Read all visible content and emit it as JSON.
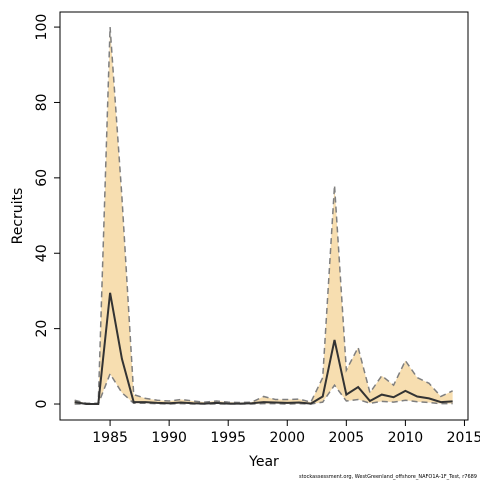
{
  "chart_data": {
    "type": "line",
    "xlabel": "Year",
    "ylabel": "Recruits",
    "annotation": "stockassessment.org, WestGreenland_offshore_NAFO1A-1F_Test, r7689",
    "x": [
      1982,
      1983,
      1984,
      1985,
      1986,
      1987,
      1988,
      1989,
      1990,
      1991,
      1992,
      1993,
      1994,
      1995,
      1996,
      1997,
      1998,
      1999,
      2000,
      2001,
      2002,
      2003,
      2004,
      2005,
      2006,
      2007,
      2008,
      2009,
      2010,
      2011,
      2012,
      2013,
      2014
    ],
    "values": [
      0.5,
      0,
      0,
      29.5,
      12,
      0.5,
      0.5,
      0.3,
      0.2,
      0.4,
      0.2,
      0.1,
      0.3,
      0.1,
      0.1,
      0.2,
      0.5,
      0.4,
      0.3,
      0.4,
      0.1,
      2,
      17,
      2.5,
      4.5,
      0.8,
      2.5,
      1.8,
      3.5,
      2,
      1.5,
      0.5,
      0.7
    ],
    "lower": [
      0,
      0,
      0,
      8,
      3,
      0.2,
      0.2,
      0.1,
      0,
      0.1,
      0,
      0,
      0,
      0,
      0,
      0,
      0.1,
      0.1,
      0,
      0.1,
      0,
      0.5,
      5,
      0.8,
      1.2,
      0.2,
      0.7,
      0.5,
      1,
      0.6,
      0.4,
      0.1,
      0.1
    ],
    "upper": [
      1,
      0.2,
      0.2,
      100,
      55,
      2.5,
      1.5,
      1,
      0.8,
      1.2,
      0.8,
      0.5,
      0.8,
      0.5,
      0.4,
      0.5,
      2,
      1.2,
      1.2,
      1.3,
      0.5,
      7,
      58,
      9,
      15,
      3,
      7.5,
      5,
      11.5,
      7,
      5.5,
      2,
      3.5
    ],
    "color": "#333333",
    "band_color": "#f7deb0",
    "bound_color": "#7f7f7f",
    "xlim": [
      1980.76,
      2015.3
    ],
    "ylim": [
      -4.24,
      104
    ],
    "xticks": [
      1985,
      1990,
      1995,
      2000,
      2005,
      2010,
      2015
    ],
    "yticks": [
      0,
      20,
      40,
      60,
      80,
      100
    ]
  }
}
